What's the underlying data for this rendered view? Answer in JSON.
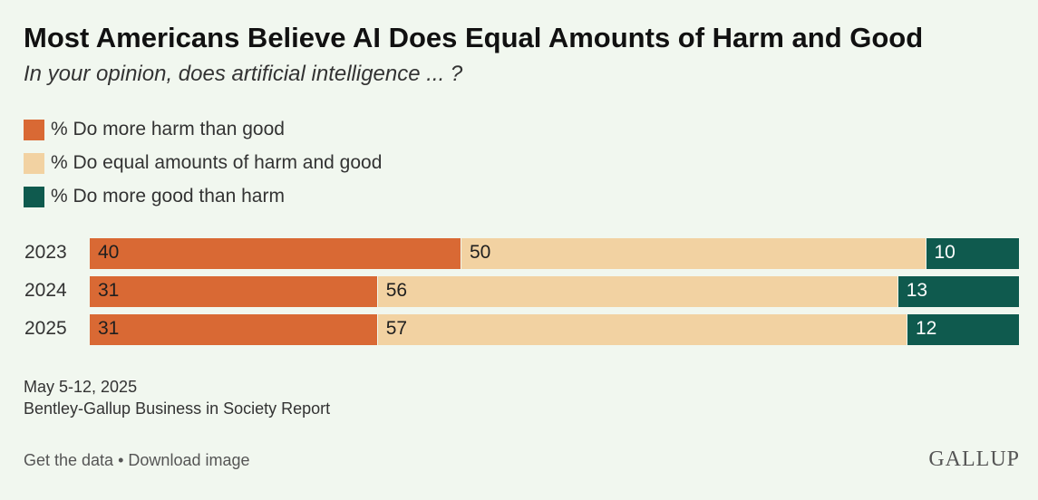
{
  "header": {
    "title": "Most Americans Believe AI Does Equal Amounts of Harm and Good",
    "subtitle": "In your opinion, does artificial intelligence ... ?"
  },
  "colors": {
    "harm": "#d96934",
    "equal": "#f2d2a2",
    "good": "#0f5a4e"
  },
  "chart_data": {
    "type": "bar",
    "stacked": true,
    "orientation": "horizontal",
    "categories": [
      "2023",
      "2024",
      "2025"
    ],
    "series": [
      {
        "name": "% Do more harm than good",
        "values": [
          40,
          31,
          31
        ],
        "color": "#d96934",
        "label_color": "#1f1f1f"
      },
      {
        "name": "% Do equal amounts of harm and good",
        "values": [
          50,
          56,
          57
        ],
        "color": "#f2d2a2",
        "label_color": "#1f1f1f"
      },
      {
        "name": "% Do more good than harm",
        "values": [
          10,
          13,
          12
        ],
        "color": "#0f5a4e",
        "label_color": "#ffffff"
      }
    ],
    "xlim": [
      0,
      100
    ],
    "legend_position": "top-left"
  },
  "footer": {
    "date": "May 5-12, 2025",
    "source": "Bentley-Gallup Business in Society Report",
    "get_data": "Get the data",
    "separator": "•",
    "download": "Download image",
    "logo": "GALLUP"
  }
}
